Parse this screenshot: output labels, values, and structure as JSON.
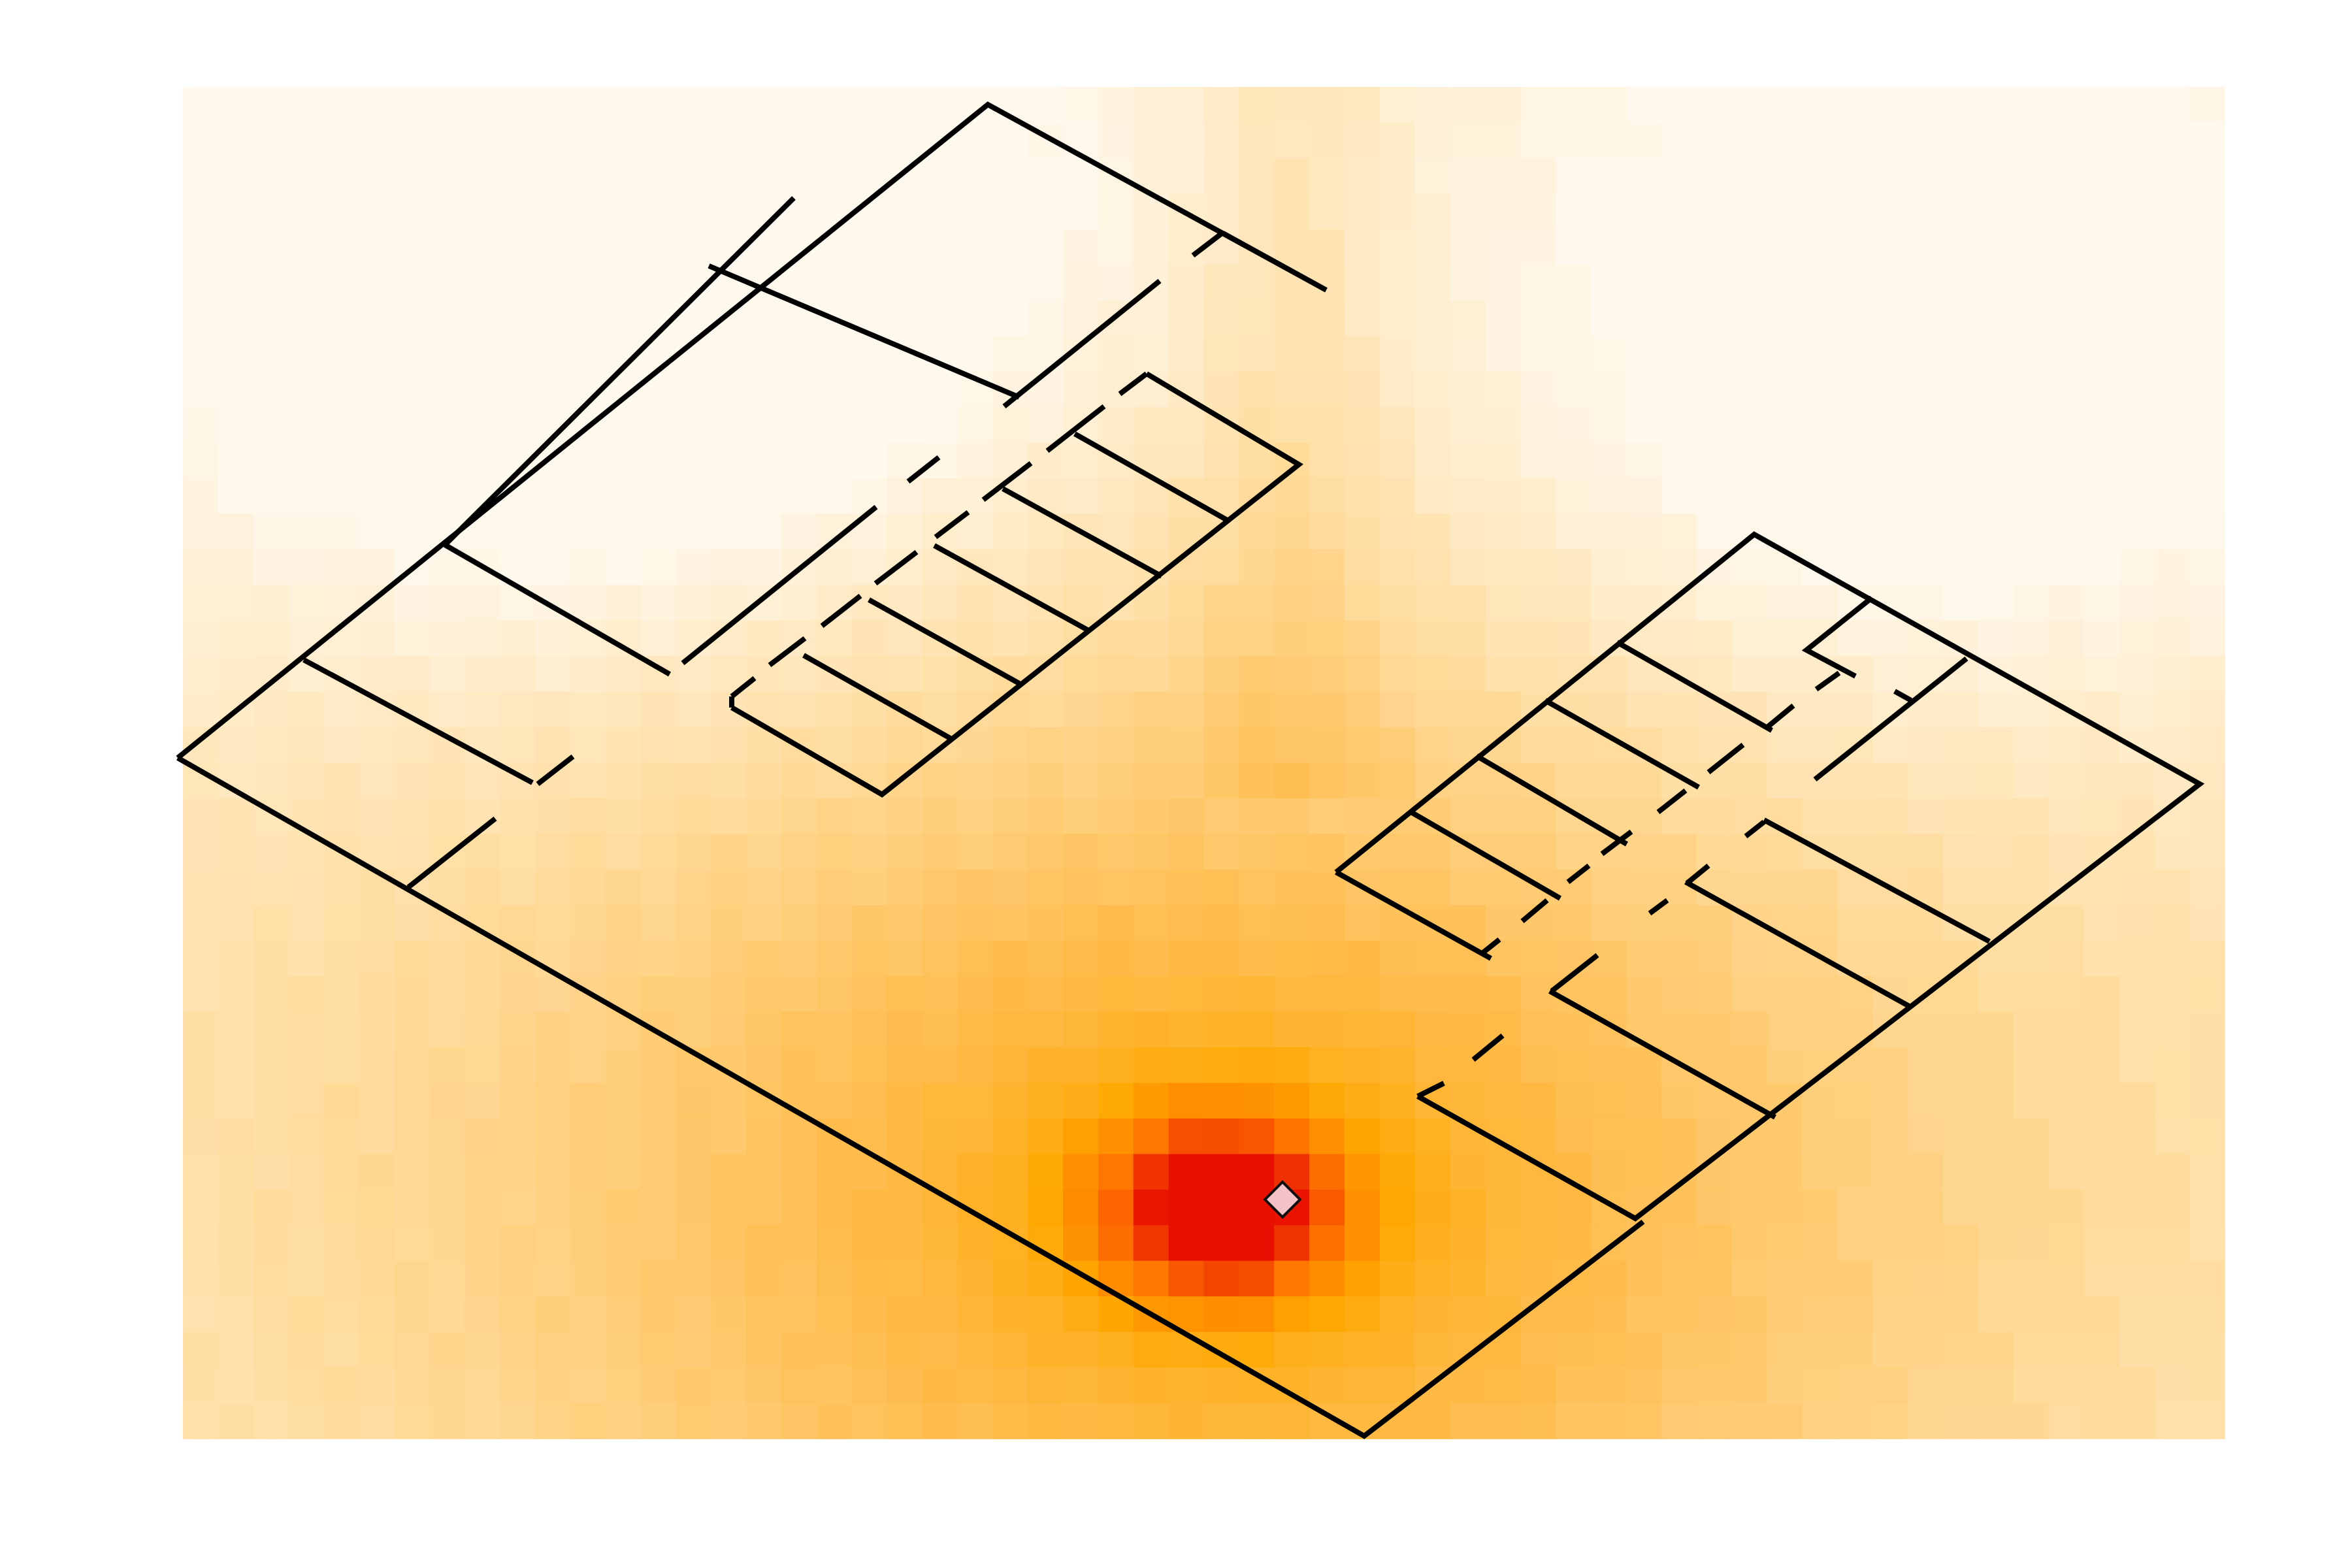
{
  "map": {
    "type": "heatmap",
    "colormap": [
      "#fff8ec",
      "#ffdda0",
      "#ffbb4a",
      "#ffa800",
      "#ff7400",
      "#e81000"
    ],
    "colors": {
      "wall": "#000000",
      "marker_fill": "#f3c2c8",
      "marker_stroke": "#111111",
      "background": "#ffffff"
    },
    "grid": {
      "cols": 58,
      "rows": 38
    },
    "source_cell": {
      "col": 29,
      "row": 31
    },
    "marker": {
      "shape": "diamond",
      "icon": "transmitter-icon"
    }
  },
  "chart_data": {
    "type": "heatmap",
    "title": "",
    "xlabel": "",
    "ylabel": "",
    "legend": "none",
    "grid": false,
    "source_marker": "diamond",
    "buildings": [
      "left-wing",
      "right-wing"
    ]
  }
}
